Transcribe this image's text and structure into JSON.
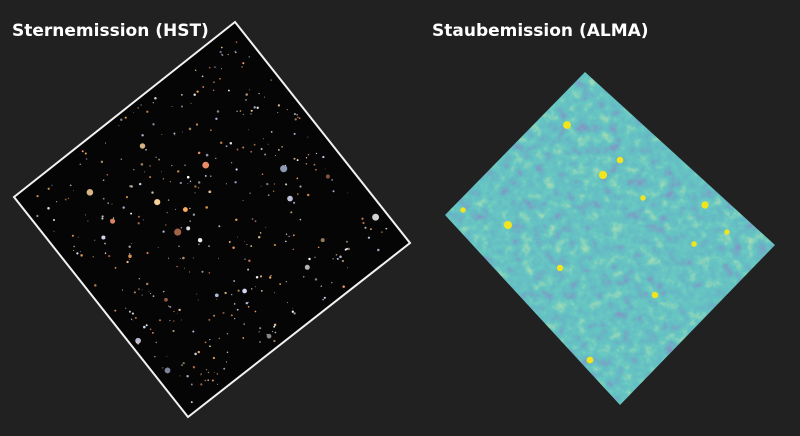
{
  "panels": [
    {
      "title": "Sternemission (HST)"
    },
    {
      "title": "Staubemission (ALMA)"
    }
  ]
}
